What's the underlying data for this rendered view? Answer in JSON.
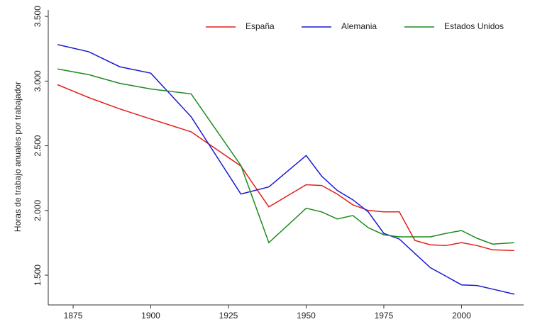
{
  "chart_data": {
    "type": "line",
    "y_label": "Horas de trabajo anuales por trabajador",
    "x": [
      1870,
      1880,
      1890,
      1900,
      1913,
      1929,
      1938,
      1950,
      1955,
      1960,
      1965,
      1970,
      1975,
      1980,
      1985,
      1990,
      1995,
      2000,
      2005,
      2010,
      2017
    ],
    "series": [
      {
        "name": "España",
        "color": "#e0201b",
        "values": [
          2972,
          2873,
          2785,
          2707,
          2608,
          2343,
          2028,
          2199,
          2193,
          2127,
          2044,
          2000,
          1989,
          1989,
          1768,
          1735,
          1729,
          1751,
          1729,
          1696,
          1690
        ]
      },
      {
        "name": "Alemania",
        "color": "#1a1ad0",
        "values": [
          3282,
          3227,
          3111,
          3061,
          2724,
          2127,
          2182,
          2425,
          2265,
          2155,
          2083,
          1989,
          1823,
          1779,
          1668,
          1558,
          1492,
          1425,
          1420,
          1392,
          1353
        ]
      },
      {
        "name": "Estados Unidos",
        "color": "#1e8a1e",
        "values": [
          3094,
          3050,
          2983,
          2939,
          2901,
          2348,
          1751,
          2017,
          1989,
          1934,
          1961,
          1867,
          1812,
          1796,
          1796,
          1796,
          1823,
          1845,
          1785,
          1740,
          1751
        ]
      }
    ],
    "xlim": [
      1867,
      2020
    ],
    "xticks": [
      1875,
      1900,
      1925,
      1950,
      1975,
      2000
    ],
    "ylim": [
      1270,
      3550
    ],
    "yticks": [
      {
        "value": 1500,
        "label": "1.500"
      },
      {
        "value": 2000,
        "label": "2.000"
      },
      {
        "value": 2500,
        "label": "2.500"
      },
      {
        "value": 3000,
        "label": "3.000"
      },
      {
        "value": 3500,
        "label": "3.500"
      }
    ],
    "legend": "top-right"
  }
}
